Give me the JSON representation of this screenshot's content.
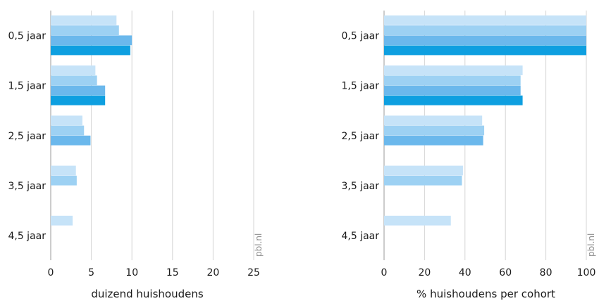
{
  "source_label": "pbl.nl",
  "colors": [
    "#c6e3f8",
    "#9dd1f3",
    "#6bb8ec",
    "#0e9fe0"
  ],
  "chart_data": [
    {
      "type": "bar",
      "orientation": "horizontal",
      "categories": [
        "0,5 jaar",
        "1,5 jaar",
        "2,5 jaar",
        "3,5 jaar",
        "4,5 jaar"
      ],
      "series": [
        {
          "values": [
            8.1,
            5.5,
            3.9,
            3.1,
            2.7
          ]
        },
        {
          "values": [
            8.4,
            5.7,
            4.1,
            3.2,
            null
          ]
        },
        {
          "values": [
            10.0,
            6.7,
            4.9,
            null,
            null
          ]
        },
        {
          "values": [
            9.8,
            6.7,
            null,
            null,
            null
          ]
        }
      ],
      "xlabel": "duizend huishoudens",
      "ylabel": "",
      "xlim": [
        0,
        25
      ],
      "xticks": [
        0,
        5,
        10,
        15,
        20,
        25
      ],
      "grid": true
    },
    {
      "type": "bar",
      "orientation": "horizontal",
      "categories": [
        "0,5 jaar",
        "1,5 jaar",
        "2,5 jaar",
        "3,5 jaar",
        "4,5 jaar"
      ],
      "series": [
        {
          "values": [
            100,
            68.5,
            48.5,
            39,
            33
          ]
        },
        {
          "values": [
            100,
            67.5,
            49.5,
            38.5,
            null
          ]
        },
        {
          "values": [
            100,
            67.5,
            49,
            null,
            null
          ]
        },
        {
          "values": [
            100,
            68.5,
            null,
            null,
            null
          ]
        }
      ],
      "xlabel": "% huishoudens per cohort",
      "ylabel": "",
      "xlim": [
        0,
        100
      ],
      "xticks": [
        0,
        20,
        40,
        60,
        80,
        100
      ],
      "grid": true
    }
  ]
}
